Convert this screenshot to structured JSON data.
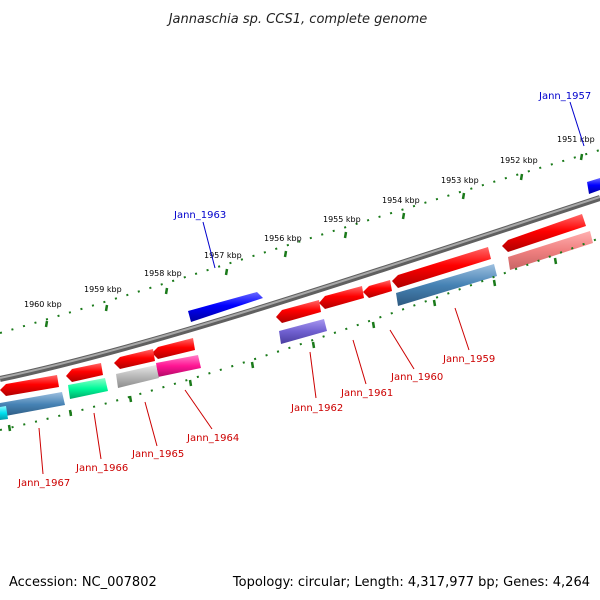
{
  "title": "Jannaschia sp. CCS1, complete genome",
  "footer": {
    "accession": "Accession: NC_007802",
    "topology": "Topology: circular; Length: 4,317,977 bp; Genes: 4,264"
  },
  "colors": {
    "backbone": "#808080",
    "tick": "#1a7a1a",
    "forward_label": "#0000cc",
    "reverse_label": "#cc0000"
  },
  "ruler": {
    "ticks": [
      "1951 kbp",
      "1952 kbp",
      "1953 kbp",
      "1954 kbp",
      "1955 kbp",
      "1956 kbp",
      "1957 kbp",
      "1958 kbp",
      "1959 kbp",
      "1960 kbp"
    ]
  },
  "forward_labels": [
    "Jann_1957",
    "Jann_1963"
  ],
  "reverse_labels": [
    "Jann_1959",
    "Jann_1960",
    "Jann_1961",
    "Jann_1962",
    "Jann_1964",
    "Jann_1965",
    "Jann_1966",
    "Jann_1967"
  ]
}
